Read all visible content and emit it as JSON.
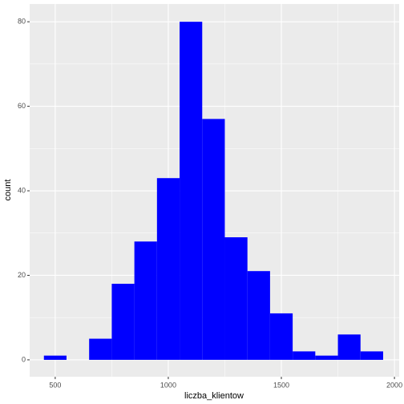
{
  "chart_data": {
    "type": "histogram",
    "x_label": "liczba_klientow",
    "y_label": "count",
    "bins": [
      450,
      550,
      650,
      750,
      850,
      950,
      1050,
      1150,
      1250,
      1350,
      1450,
      1550,
      1650,
      1750,
      1850,
      1950
    ],
    "values": [
      1,
      0,
      5,
      18,
      28,
      43,
      80,
      57,
      29,
      21,
      11,
      2,
      1,
      6,
      2
    ],
    "color": "#0000ff",
    "xlim": [
      387,
      2021
    ],
    "xticks": [
      500,
      1000,
      1500,
      2000
    ],
    "x_minor_ticks": [
      750,
      1250,
      1750
    ],
    "ylim": [
      -4,
      84.2
    ],
    "yticks": [
      0,
      20,
      40,
      60,
      80
    ],
    "y_minor_ticks": [
      10,
      30,
      50,
      70
    ],
    "grid": true
  }
}
